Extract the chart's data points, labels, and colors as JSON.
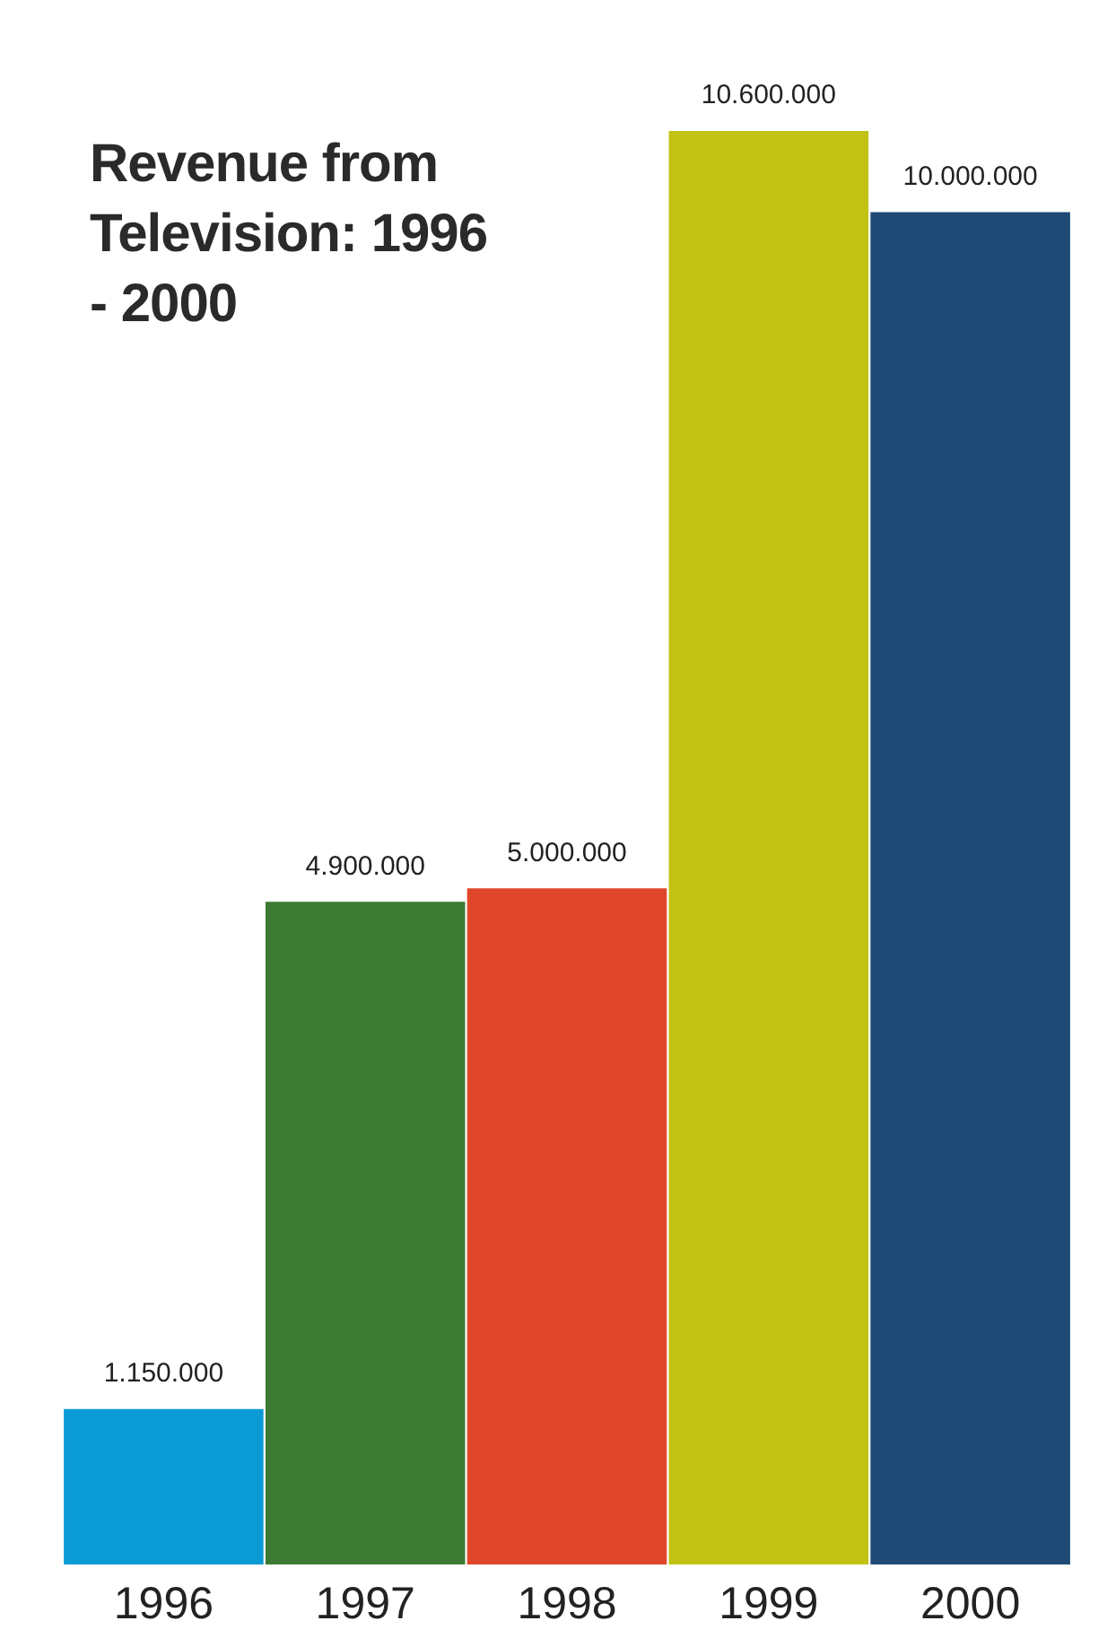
{
  "chart_data": {
    "type": "bar",
    "title": "Revenue from Television: 1996 - 2000",
    "categories": [
      "1996",
      "1997",
      "1998",
      "1999",
      "2000"
    ],
    "values": [
      1150000,
      4900000,
      5000000,
      10600000,
      10000000
    ],
    "colors": [
      "#0a9ad6",
      "#3d7a33",
      "#e0472a",
      "#c2c214",
      "#1e4a75"
    ],
    "value_labels": [
      "1.150.000",
      "4.900.000",
      "5.000.000",
      "10.600.000",
      "10.000.000"
    ],
    "grid": false,
    "legend": false
  }
}
